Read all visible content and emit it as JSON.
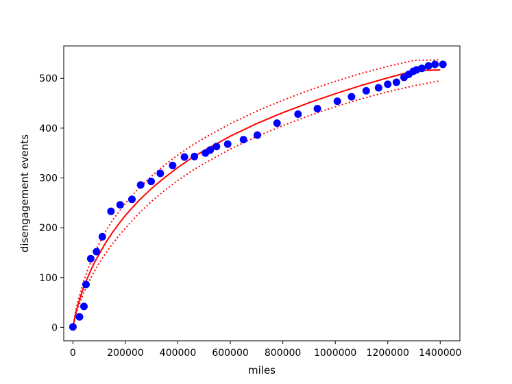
{
  "chart_data": {
    "type": "scatter",
    "title": "",
    "xlabel": "miles",
    "ylabel": "disengagement events",
    "xlim": [
      -35000,
      1475000
    ],
    "ylim": [
      -27,
      565
    ],
    "xticks": [
      0,
      200000,
      400000,
      600000,
      800000,
      1000000,
      1200000,
      1400000
    ],
    "xtick_labels": [
      "0",
      "200000",
      "400000",
      "600000",
      "800000",
      "1000000",
      "1200000",
      "1400000"
    ],
    "yticks": [
      0,
      100,
      200,
      300,
      400,
      500
    ],
    "ytick_labels": [
      "0",
      "100",
      "200",
      "300",
      "400",
      "500"
    ],
    "grid": false,
    "legend": "none",
    "series": [
      {
        "kind": "scatter",
        "color": "#0000ff",
        "x": [
          0,
          25000,
          42000,
          50000,
          68000,
          90000,
          112000,
          145000,
          180000,
          225000,
          258000,
          298000,
          333000,
          380000,
          425000,
          463000,
          505000,
          523000,
          547000,
          590000,
          650000,
          703000,
          778000,
          858000,
          932000,
          1008000,
          1062000,
          1118000,
          1165000,
          1200000,
          1233000,
          1262000,
          1280000,
          1297000,
          1310000,
          1330000,
          1355000,
          1380000,
          1410000
        ],
        "y": [
          1,
          21,
          42,
          86,
          138,
          152,
          182,
          233,
          246,
          257,
          286,
          293,
          309,
          325,
          342,
          343,
          350,
          356,
          363,
          368,
          377,
          386,
          410,
          428,
          439,
          454,
          463,
          475,
          481,
          488,
          492,
          502,
          508,
          514,
          517,
          520,
          525,
          528,
          528
        ]
      },
      {
        "kind": "line",
        "style": "solid",
        "color": "#ff0000",
        "x": [
          2000,
          10000,
          20000,
          40000,
          60000,
          80000,
          100000,
          125000,
          150000,
          175000,
          200000,
          250000,
          300000,
          350000,
          400000,
          450000,
          500000,
          600000,
          700000,
          800000,
          900000,
          1000000,
          1100000,
          1200000,
          1300000,
          1400000
        ],
        "y": [
          6,
          27,
          47,
          79,
          105,
          128,
          147,
          170,
          190,
          208,
          225,
          254,
          279,
          301,
          321,
          339,
          355,
          384,
          409,
          431,
          451,
          469,
          486,
          501,
          515,
          517
        ]
      },
      {
        "kind": "line",
        "style": "dotted",
        "color": "#ff0000",
        "x": [
          2000,
          10000,
          20000,
          40000,
          60000,
          80000,
          100000,
          125000,
          150000,
          175000,
          200000,
          250000,
          300000,
          350000,
          400000,
          450000,
          500000,
          600000,
          700000,
          800000,
          900000,
          1000000,
          1100000,
          1200000,
          1300000,
          1400000
        ],
        "y": [
          7,
          31,
          54,
          91,
          121,
          146,
          168,
          193,
          214,
          232,
          249,
          279,
          304,
          326,
          346,
          364,
          380,
          409,
          434,
          456,
          476,
          494,
          510,
          524,
          536,
          537
        ]
      },
      {
        "kind": "line",
        "style": "dotted",
        "color": "#ff0000",
        "x": [
          2000,
          10000,
          20000,
          40000,
          60000,
          80000,
          100000,
          125000,
          150000,
          175000,
          200000,
          250000,
          300000,
          350000,
          400000,
          450000,
          500000,
          600000,
          700000,
          800000,
          900000,
          1000000,
          1100000,
          1200000,
          1300000,
          1400000
        ],
        "y": [
          5,
          22,
          40,
          68,
          91,
          111,
          129,
          149,
          167,
          184,
          199,
          228,
          253,
          275,
          295,
          313,
          329,
          358,
          383,
          405,
          425,
          443,
          459,
          473,
          485,
          495
        ]
      }
    ]
  }
}
